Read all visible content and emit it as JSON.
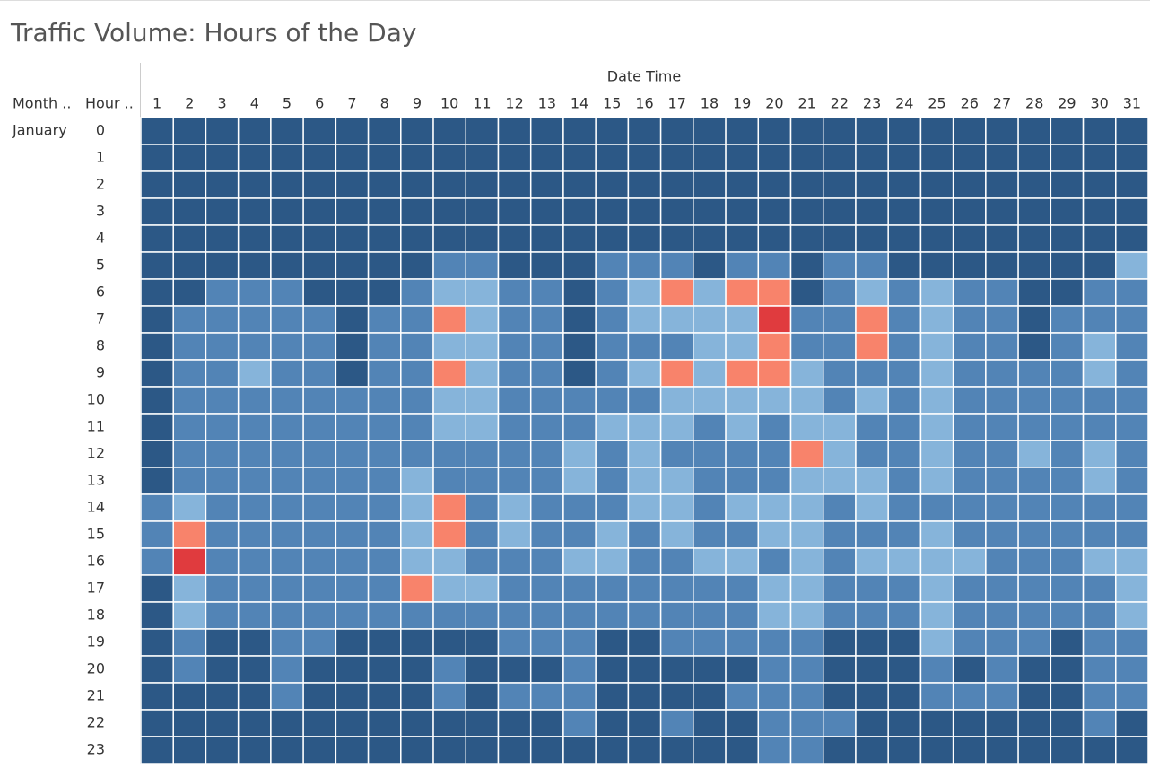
{
  "chart_data": {
    "type": "heatmap",
    "title": "Traffic Volume: Hours of the Day",
    "column_header": "Date Time",
    "row_headers": [
      "Month ..",
      "Hour .."
    ],
    "month": "January",
    "days": [
      1,
      2,
      3,
      4,
      5,
      6,
      7,
      8,
      9,
      10,
      11,
      12,
      13,
      14,
      15,
      16,
      17,
      18,
      19,
      20,
      21,
      22,
      23,
      24,
      25,
      26,
      27,
      28,
      29,
      30,
      31
    ],
    "hours": [
      0,
      1,
      2,
      3,
      4,
      5,
      6,
      7,
      8,
      9,
      10,
      11,
      12,
      13,
      14,
      15,
      16,
      17,
      18,
      19,
      20,
      21,
      22,
      23
    ],
    "colors": {
      "A": "#2c5886",
      "B": "#5284b6",
      "C": "#86b4da",
      "R": "#f8836b",
      "X": "#e03b3e"
    },
    "cells": [
      "AAAAAAAAAAAAAAAAAAAAAAAAAAAAAAA",
      "AAAAAAAAAAAAAAAAAAAAAAAAAAAAAAA",
      "AAAAAAAAAAAAAAAAAAAAAAAAAAAAAAA",
      "AAAAAAAAAAAAAAAAAAAAAAAAAAAAAAA",
      "AAAAAAAAAAAAAAAAAAAAAAAAAAAAAAA",
      "AAAAAAAAABBAAABBBABBABBAAAAAAAC",
      "AABBBAAABCCBBABCRCRRABCBCBBAABB",
      "ABBBBBABBRCBBABCCCCXBBRBCBBABBB",
      "ABBBBBABBCCBBABBBCCRBBRBCBBABCB",
      "ABBCBBABBRCBBABCRCRRCBBBCBBBBCB",
      "ABBBBBBBBCCBBBBBCCCCCBCBCBBBBBB",
      "ABBBBBBBBCCBBBCCCBCBCCBBCBBBBBB",
      "ABBBBBBBBBBBBCBCBBBBRCBBCBBCBCB",
      "ABBBBBBBCBBBBCBCCBBBCCCBCBBBBCB",
      "BCBBBBBBCRBCBBBCCBCCCBCBBBBBBBB",
      "BRBBBBBBCRBCBBCBCBBCCBBBCBBBBBB",
      "BXBBBBBBCCBBBCCBBCCBCBCCCCBBBCC",
      "ACBBBBBBRCCBBBBBBBBCCBBBCBBBBBC",
      "ACBBBBBBBBBBBBBBBBBCCBBBCBBBBBC",
      "ABAABBAAAAABBBAABBBBBAAACBBBABB",
      "ABAABAAAABAAABAAAAABBAAABABAABB",
      "AAAABAAAABABBBAAAABBBAAABBBAABB",
      "AAAAAAAAAAAAABAABAABBBAAAAAAABA",
      "AAAAAAAAAAAAAAAAAAABBAAAAAAAAAA"
    ]
  }
}
